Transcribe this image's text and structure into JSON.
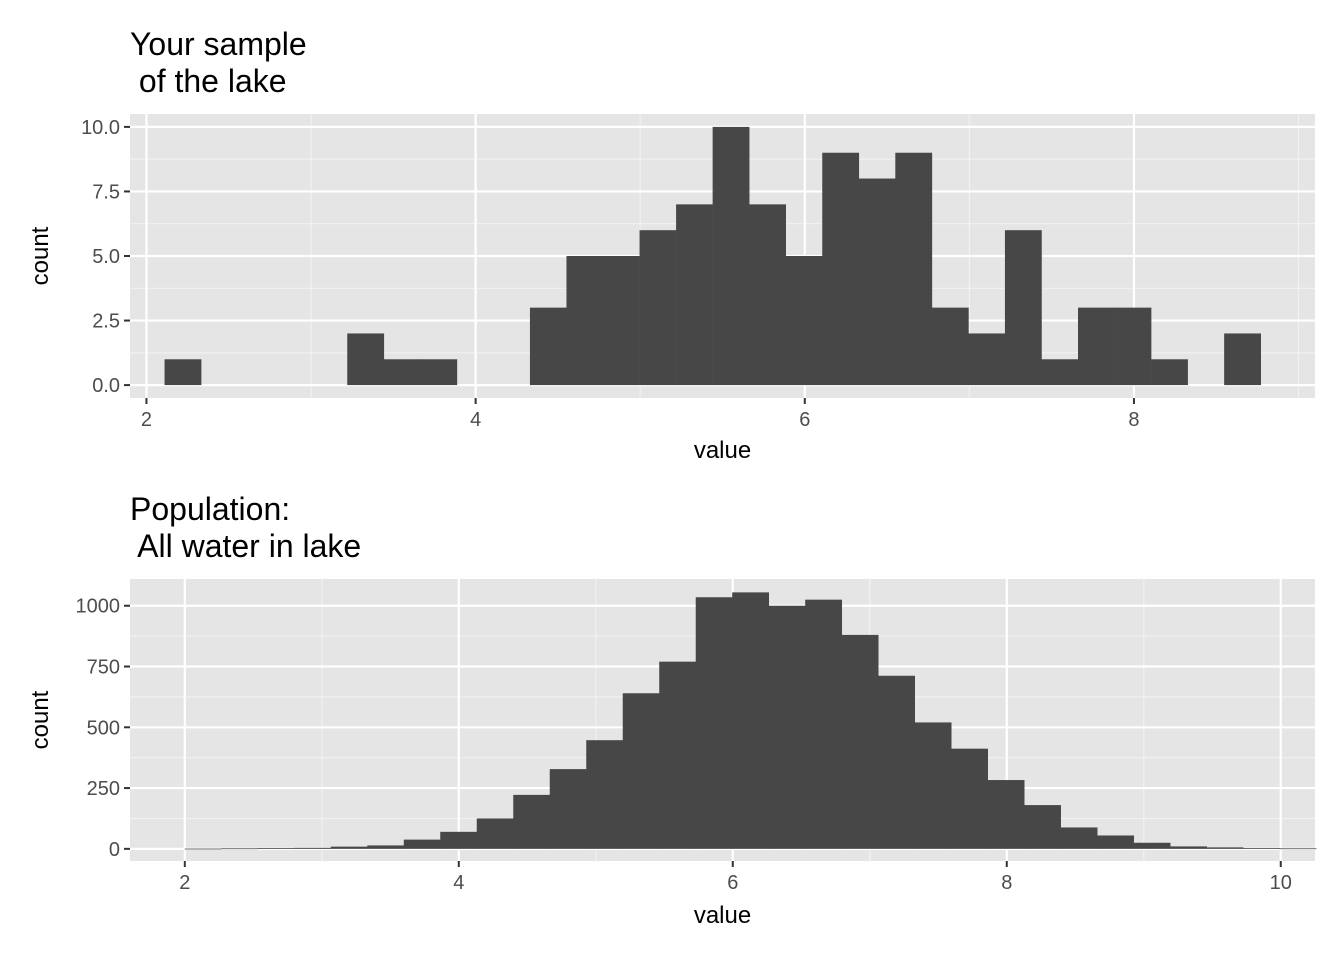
{
  "chart_data": [
    {
      "type": "bar",
      "title": [
        "Your sample",
        " of the lake"
      ],
      "xlabel": "value",
      "ylabel": "count",
      "xlim": [
        1.9,
        9.1
      ],
      "ylim": [
        -0.5,
        10.5
      ],
      "x_ticks": [
        2,
        4,
        6,
        8
      ],
      "x_tick_labels": [
        "2",
        "4",
        "6",
        "8"
      ],
      "y_ticks": [
        0,
        2.5,
        5,
        7.5,
        10
      ],
      "y_tick_labels": [
        "0.0",
        "2.5",
        "5.0",
        "7.5",
        "10.0"
      ],
      "bin_width": 0.222,
      "bins_start": 2.11,
      "counts": [
        1,
        0,
        0,
        0,
        0,
        2,
        1,
        1,
        0,
        0,
        3,
        5,
        5,
        6,
        7,
        10,
        7,
        5,
        9,
        8,
        9,
        3,
        2,
        6,
        1,
        3,
        3,
        1,
        0,
        2
      ],
      "grid": true,
      "bar_color": "#474747",
      "panel_color": "#e5e5e5"
    },
    {
      "type": "bar",
      "title": [
        "Population:",
        " All water in lake"
      ],
      "xlabel": "value",
      "ylabel": "count",
      "xlim": [
        1.6,
        10.25
      ],
      "ylim": [
        -50,
        1110
      ],
      "x_ticks": [
        2,
        4,
        6,
        8,
        10
      ],
      "x_tick_labels": [
        "2",
        "4",
        "6",
        "8",
        "10"
      ],
      "y_ticks": [
        0,
        250,
        500,
        750,
        1000
      ],
      "y_tick_labels": [
        "0",
        "250",
        "500",
        "750",
        "1000"
      ],
      "bin_width": 0.2664,
      "bins_start": 2.0,
      "counts": [
        1,
        2,
        3,
        4,
        9,
        14,
        38,
        70,
        125,
        222,
        328,
        447,
        640,
        770,
        1035,
        1055,
        1000,
        1025,
        880,
        712,
        520,
        412,
        283,
        180,
        88,
        55,
        25,
        10,
        6,
        3,
        2
      ],
      "grid": true,
      "bar_color": "#474747",
      "panel_color": "#e5e5e5"
    }
  ]
}
